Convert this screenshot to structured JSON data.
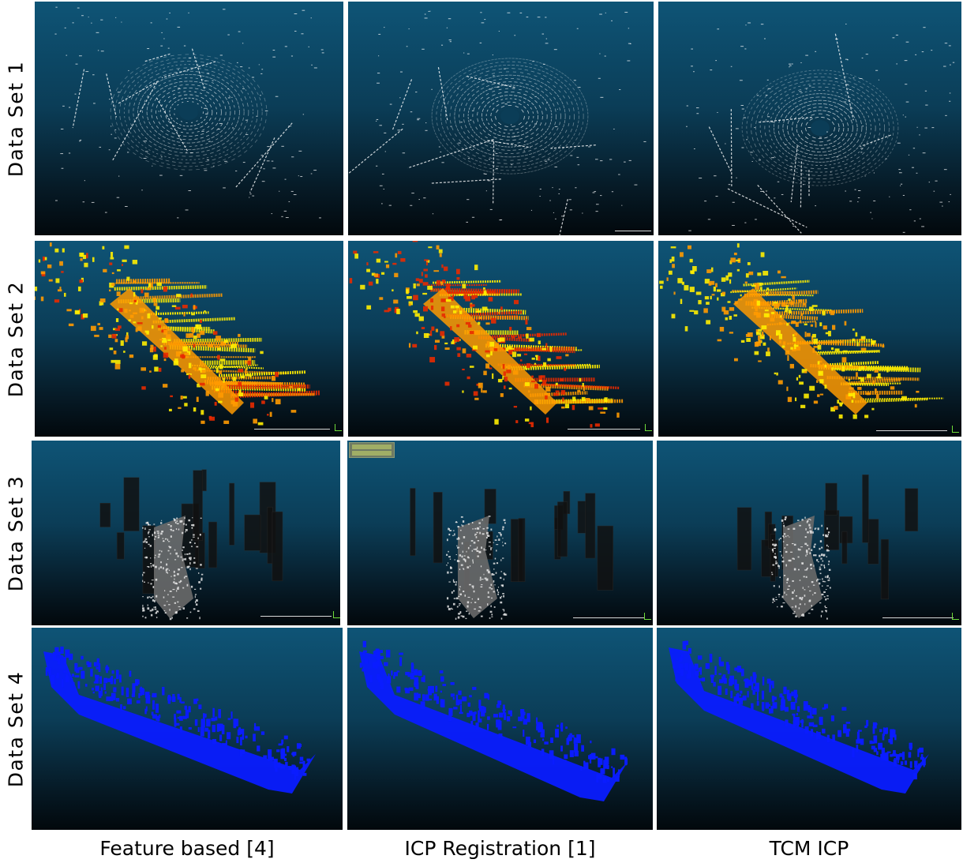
{
  "row_labels": [
    "Data Set 1",
    "Data Set 2",
    "Data Set 3",
    "Data Set 4"
  ],
  "column_labels": [
    "Feature based [4]",
    "ICP Registration [1]",
    "TCM ICP"
  ],
  "point_colors": {
    "data_set_1": "#ffffff",
    "data_set_2": [
      "#ffee00",
      "#ff9a00",
      "#e82a00"
    ],
    "data_set_3": [
      "#e6e6e6",
      "#111111"
    ],
    "data_set_4": "#0a1cff"
  },
  "icons": [
    "axis-triad-icon",
    "scale-bar"
  ]
}
